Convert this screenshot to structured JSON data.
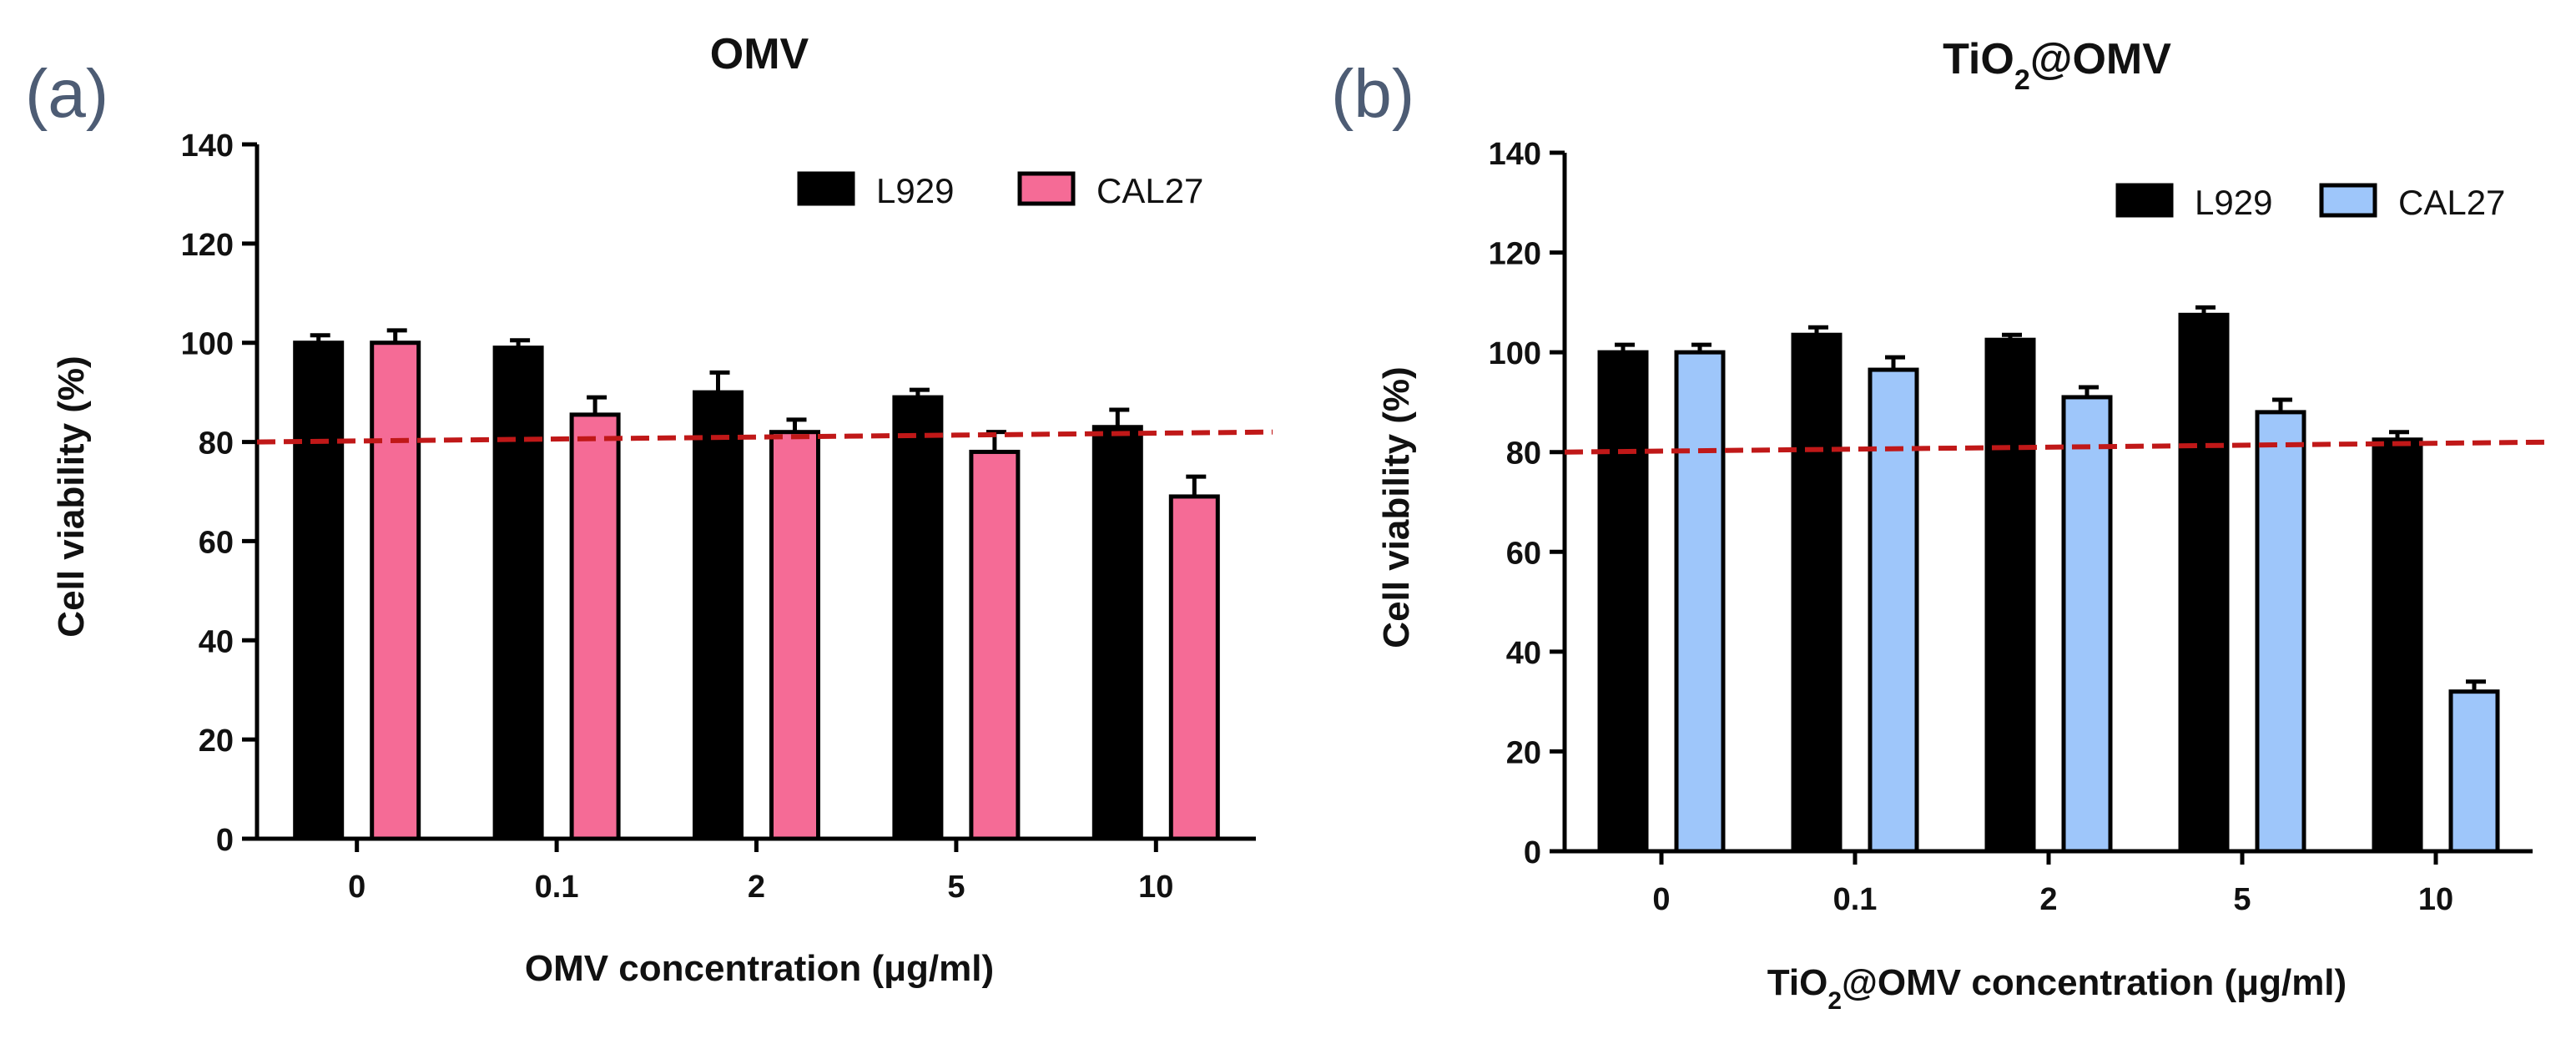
{
  "chart_data": [
    {
      "type": "bar",
      "panel": "(a)",
      "title": "OMV",
      "xlabel": "OMV concentration (μg/ml)",
      "ylabel": "Cell viability (%)",
      "categories": [
        "0",
        "0.1",
        "2",
        "5",
        "10"
      ],
      "ylim": [
        0,
        140
      ],
      "yticks": [
        0,
        20,
        40,
        60,
        80,
        100,
        120,
        140
      ],
      "series": [
        {
          "name": "L929",
          "color": "#000000",
          "values": [
            100,
            99,
            90,
            89,
            83
          ],
          "errors": [
            1.5,
            1.5,
            4,
            1.5,
            3.5
          ]
        },
        {
          "name": "CAL27",
          "color": "#f56b96",
          "values": [
            100,
            85.5,
            82,
            78,
            69
          ],
          "errors": [
            2.5,
            3.5,
            2.5,
            4,
            4
          ]
        }
      ],
      "reference_line": {
        "y_start": 80,
        "y_end": 82,
        "color": "#c01818",
        "style": "dashed"
      },
      "legend_position": "top-right"
    },
    {
      "type": "bar",
      "panel": "(b)",
      "title": "TiO2@OMV",
      "title_base": "TiO",
      "title_sub": "2",
      "title_rest": "@OMV",
      "xlabel": "TiO2@OMV concentration (μg/ml)",
      "xlabel_base": "TiO",
      "xlabel_sub": "2",
      "xlabel_rest": "@OMV concentration (μg/ml)",
      "ylabel": "Cell viability (%)",
      "categories": [
        "0",
        "0.1",
        "2",
        "5",
        "10"
      ],
      "ylim": [
        0,
        140
      ],
      "yticks": [
        0,
        20,
        40,
        60,
        80,
        100,
        120,
        140
      ],
      "series": [
        {
          "name": "L929",
          "color": "#000000",
          "values": [
            100,
            103.5,
            102.5,
            107.5,
            82.5
          ],
          "errors": [
            1.5,
            1.5,
            1,
            1.5,
            1.5
          ]
        },
        {
          "name": "CAL27",
          "color": "#9ec6fa",
          "values": [
            100,
            96.5,
            91,
            88,
            32
          ],
          "errors": [
            1.5,
            2.5,
            2,
            2.5,
            2
          ]
        }
      ],
      "reference_line": {
        "y_start": 80,
        "y_end": 82,
        "color": "#c01818",
        "style": "dashed"
      },
      "legend_position": "top-right"
    }
  ]
}
